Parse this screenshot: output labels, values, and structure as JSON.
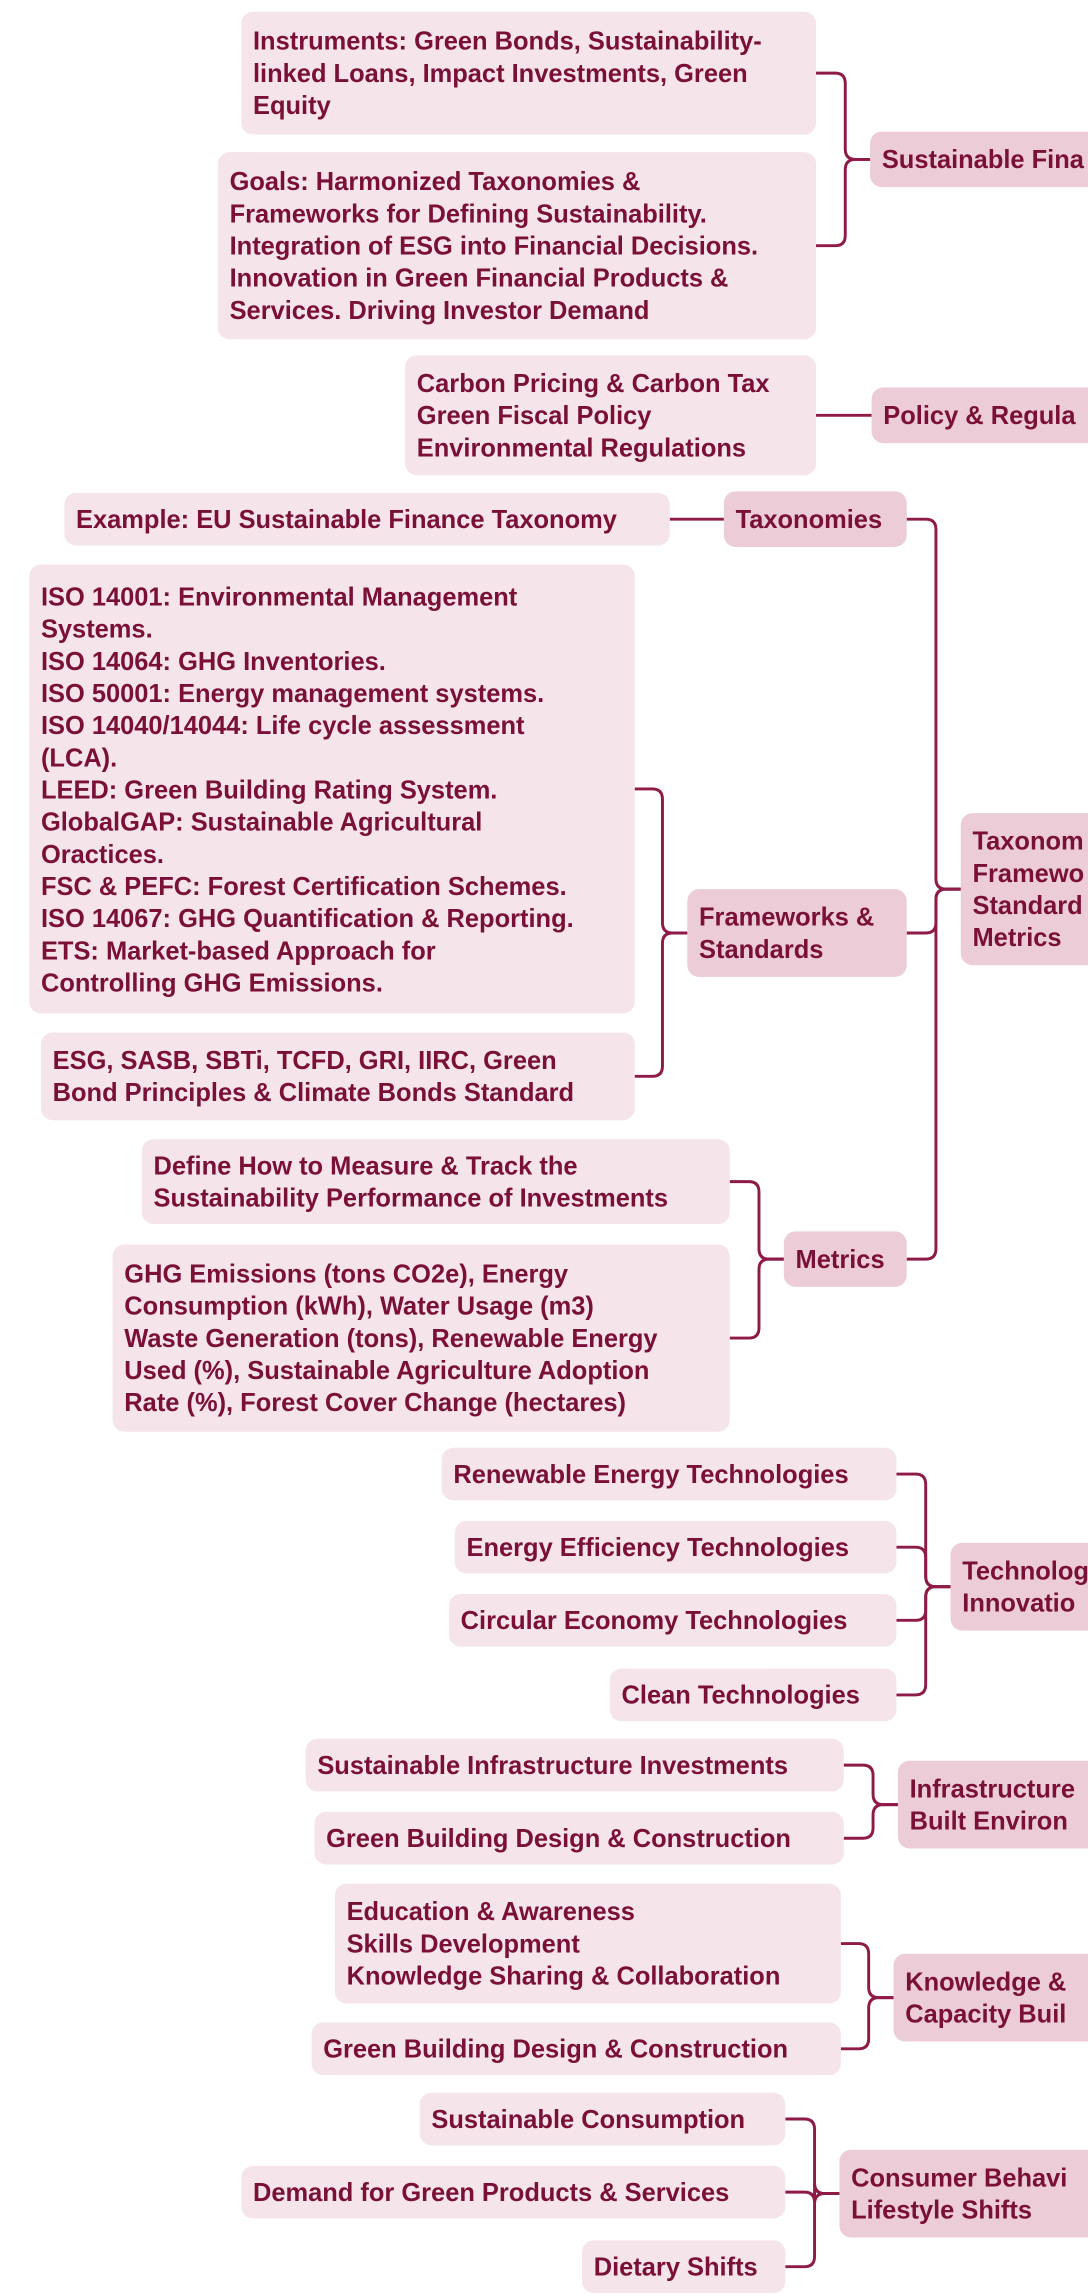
{
  "nodes": [
    {
      "lines": [
        "Instruments: Green Bonds, Sustainability-",
        "linked Loans, Impact Investments, Green",
        "Equity"
      ]
    },
    {
      "lines": [
        "Goals: Harmonized Taxonomies &",
        "Frameworks for Defining Sustainability.",
        "Integration of ESG into Financial Decisions.",
        "Innovation in Green Financial Products &",
        "Services. Driving Investor Demand"
      ]
    },
    {
      "lines": [
        "Sustainable Fina"
      ]
    },
    {
      "lines": [
        "Carbon Pricing & Carbon Tax",
        "Green Fiscal Policy",
        "Environmental Regulations"
      ]
    },
    {
      "lines": [
        "Policy & Regula"
      ]
    },
    {
      "lines": [
        "Example: EU Sustainable Finance Taxonomy"
      ]
    },
    {
      "lines": [
        "Taxonomies"
      ]
    },
    {
      "lines": [
        "ISO 14001: Environmental Management",
        "Systems.",
        "ISO 14064: GHG Inventories.",
        "ISO 50001: Energy management systems.",
        "ISO 14040/14044: Life cycle assessment",
        "(LCA).",
        "LEED: Green Building Rating System.",
        "GlobalGAP: Sustainable Agricultural",
        "Oractices.",
        "FSC & PEFC: Forest Certification Schemes.",
        "ISO 14067: GHG Quantification & Reporting.",
        "ETS: Market-based Approach for",
        "Controlling GHG Emissions."
      ]
    },
    {
      "lines": [
        "ESG, SASB, SBTi, TCFD, GRI, IIRC, Green",
        "Bond Principles & Climate Bonds Standard"
      ]
    },
    {
      "lines": [
        "Frameworks &",
        "Standards"
      ]
    },
    {
      "lines": [
        "Define How to Measure & Track the",
        "Sustainability Performance of Investments"
      ]
    },
    {
      "lines": [
        "GHG Emissions (tons CO2e), Energy",
        "Consumption (kWh), Water Usage (m3)",
        "Waste Generation (tons), Renewable Energy",
        "Used (%), Sustainable Agriculture Adoption",
        "Rate (%), Forest Cover Change (hectares)"
      ]
    },
    {
      "lines": [
        "Metrics"
      ]
    },
    {
      "lines": [
        "Taxonom",
        "Framewo",
        "Standard",
        "Metrics"
      ]
    },
    {
      "lines": [
        "Renewable Energy Technologies"
      ]
    },
    {
      "lines": [
        "Energy Efficiency Technologies"
      ]
    },
    {
      "lines": [
        "Circular Economy Technologies"
      ]
    },
    {
      "lines": [
        "Clean Technologies"
      ]
    },
    {
      "lines": [
        "Technolog",
        "Innovatio"
      ]
    },
    {
      "lines": [
        "Sustainable Infrastructure Investments"
      ]
    },
    {
      "lines": [
        "Green Building Design & Construction"
      ]
    },
    {
      "lines": [
        "Infrastructure",
        "Built Environ"
      ]
    },
    {
      "lines": [
        "Education & Awareness",
        "Skills Development",
        "Knowledge Sharing & Collaboration"
      ]
    },
    {
      "lines": [
        "Green Building Design & Construction"
      ]
    },
    {
      "lines": [
        "Knowledge &",
        "Capacity Buil"
      ]
    },
    {
      "lines": [
        "Sustainable Consumption"
      ]
    },
    {
      "lines": [
        "Demand for Green Products & Services"
      ]
    },
    {
      "lines": [
        "Dietary Shifts"
      ]
    },
    {
      "lines": [
        "Consumer Behavi",
        "Lifestyle Shifts"
      ]
    }
  ]
}
